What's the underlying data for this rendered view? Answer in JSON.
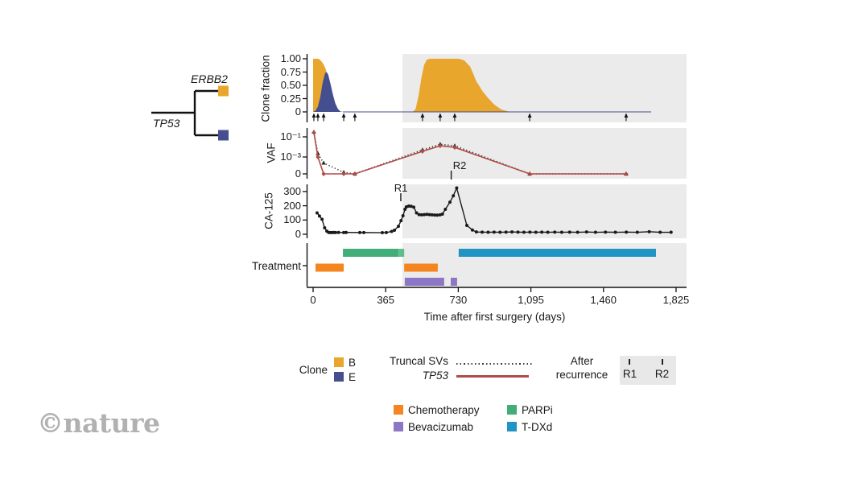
{
  "branding": {
    "logo": "©nature"
  },
  "tree": {
    "root_label": "TP53",
    "branch_top_label": "ERBB2",
    "branch_top_color": "#e8a62c",
    "branch_bottom_color": "#454f8f"
  },
  "figure": {
    "panel_bg": "#ebebeb",
    "recurrence_start_day": 449,
    "x_axis": {
      "title": "Time after first surgery (days)",
      "tick_days": [
        0,
        365,
        730,
        1095,
        1460,
        1825
      ],
      "tick_labels": [
        "0",
        "365",
        "730",
        "1,095",
        "1,460",
        "1,825"
      ],
      "domain_days": [
        0,
        1825
      ]
    }
  },
  "chart_data": [
    {
      "id": "clone_fraction",
      "type": "area",
      "ylabel": "Clone fraction",
      "ytick_labels": [
        "1.00",
        "0.75",
        "0.50",
        "0.25",
        "0"
      ],
      "ytick_values": [
        1,
        0.75,
        0.5,
        0.25,
        0
      ],
      "ylim": [
        0,
        1
      ],
      "series": [
        {
          "name": "Clone B",
          "color": "#e8a62c",
          "x": [
            0,
            28,
            40,
            52,
            64,
            76,
            88,
            100,
            112,
            124,
            136,
            148,
            500,
            515,
            530,
            545,
            558,
            571,
            585,
            733,
            760,
            790,
            805,
            820,
            834,
            850,
            865,
            880,
            895,
            910,
            925,
            940,
            955,
            970,
            985,
            1000,
            1025,
            1878
          ],
          "y": [
            1,
            1,
            0.96,
            0.9,
            0.8,
            0.62,
            0.44,
            0.27,
            0.14,
            0.05,
            0.01,
            0,
            0,
            0.05,
            0.3,
            0.65,
            0.88,
            0.98,
            1,
            1,
            0.97,
            0.85,
            0.72,
            0.58,
            0.5,
            0.4,
            0.33,
            0.26,
            0.2,
            0.14,
            0.1,
            0.06,
            0.035,
            0.02,
            0.008,
            0.002,
            0,
            0
          ]
        },
        {
          "name": "Clone E",
          "color": "#454f8f",
          "x": [
            0,
            12,
            24,
            36,
            48,
            60,
            68,
            76,
            88,
            100,
            112,
            124,
            136,
            150,
            1700
          ],
          "y": [
            0,
            0.02,
            0.1,
            0.28,
            0.55,
            0.73,
            0.75,
            0.7,
            0.52,
            0.32,
            0.16,
            0.06,
            0.01,
            0,
            0
          ]
        }
      ],
      "sample_days": [
        4,
        24,
        53,
        154,
        210,
        550,
        639,
        712,
        1089,
        1574
      ]
    },
    {
      "id": "vaf",
      "type": "line",
      "ylabel": "VAF",
      "ytick_labels": [
        "10⁻¹",
        "10⁻³",
        "0"
      ],
      "series": [
        {
          "name": "Truncal SVs",
          "style": "dotted",
          "color": "#2b2b2b",
          "marker": "triangle",
          "points": [
            [
              4,
              0.3
            ],
            [
              24,
              0.0022
            ],
            [
              53,
              0.00025
            ],
            [
              154,
              3e-05
            ],
            [
              210,
              0
            ],
            [
              550,
              0.005
            ],
            [
              639,
              0.018
            ],
            [
              712,
              0.013
            ],
            [
              1089,
              0
            ],
            [
              1574,
              0
            ]
          ]
        },
        {
          "name": "TP53",
          "style": "solid",
          "color": "#b14b48",
          "marker": "diamond",
          "points": [
            [
              4,
              0.27
            ],
            [
              24,
              0.001
            ],
            [
              53,
              0
            ],
            [
              154,
              0
            ],
            [
              210,
              0
            ],
            [
              550,
              0.0036
            ],
            [
              639,
              0.013
            ],
            [
              712,
              0.009
            ],
            [
              1089,
              0
            ],
            [
              1574,
              0
            ]
          ]
        }
      ]
    },
    {
      "id": "ca125",
      "type": "line",
      "ylabel": "CA-125",
      "ytick_labels": [
        "300",
        "200",
        "100",
        "0"
      ],
      "ytick_values": [
        300,
        200,
        100,
        0
      ],
      "annotations": [
        {
          "label": "R1",
          "day": 441
        },
        {
          "label": "R2",
          "day": 735
        }
      ],
      "series": [
        {
          "name": "CA-125",
          "color": "#1a1a1a",
          "marker": "circle",
          "points": [
            [
              20,
              150
            ],
            [
              32,
              128
            ],
            [
              45,
              105
            ],
            [
              58,
              45
            ],
            [
              69,
              22
            ],
            [
              78,
              13
            ],
            [
              86,
              12
            ],
            [
              95,
              12
            ],
            [
              104,
              13
            ],
            [
              113,
              12
            ],
            [
              128,
              13
            ],
            [
              154,
              12
            ],
            [
              166,
              13
            ],
            [
              235,
              12
            ],
            [
              255,
              12
            ],
            [
              348,
              11
            ],
            [
              368,
              12
            ],
            [
              395,
              20
            ],
            [
              409,
              28
            ],
            [
              429,
              56
            ],
            [
              442,
              95
            ],
            [
              452,
              130
            ],
            [
              462,
              175
            ],
            [
              469,
              192
            ],
            [
              481,
              198
            ],
            [
              493,
              196
            ],
            [
              506,
              190
            ],
            [
              520,
              150
            ],
            [
              533,
              138
            ],
            [
              546,
              136
            ],
            [
              559,
              138
            ],
            [
              572,
              140
            ],
            [
              585,
              138
            ],
            [
              598,
              136
            ],
            [
              611,
              135
            ],
            [
              624,
              134
            ],
            [
              638,
              136
            ],
            [
              650,
              141
            ],
            [
              665,
              175
            ],
            [
              688,
              225
            ],
            [
              705,
              270
            ],
            [
              722,
              325
            ],
            [
              773,
              62
            ],
            [
              801,
              30
            ],
            [
              821,
              16
            ],
            [
              850,
              15
            ],
            [
              880,
              14
            ],
            [
              910,
              15
            ],
            [
              940,
              14
            ],
            [
              970,
              15
            ],
            [
              1000,
              16
            ],
            [
              1030,
              15
            ],
            [
              1060,
              14
            ],
            [
              1090,
              15
            ],
            [
              1120,
              14
            ],
            [
              1150,
              15
            ],
            [
              1180,
              14
            ],
            [
              1215,
              15
            ],
            [
              1250,
              14
            ],
            [
              1290,
              15
            ],
            [
              1330,
              14
            ],
            [
              1375,
              16
            ],
            [
              1420,
              14
            ],
            [
              1470,
              15
            ],
            [
              1520,
              14
            ],
            [
              1575,
              15
            ],
            [
              1630,
              14
            ],
            [
              1690,
              18
            ],
            [
              1745,
              14
            ],
            [
              1800,
              14
            ]
          ]
        }
      ]
    },
    {
      "id": "treatment",
      "type": "bars",
      "ylabel": "Treatment",
      "bars": [
        {
          "name": "Chemotherapy",
          "color": "#f5861f",
          "row": 1,
          "spans": [
            [
              12,
              154
            ],
            [
              458,
              627
            ]
          ]
        },
        {
          "name": "PARPi",
          "color": "#41ae79",
          "row": 0,
          "spans": [
            [
              150,
              430
            ]
          ]
        },
        {
          "name": "PARPi",
          "color": "#5fbf8c",
          "row": 0,
          "spans": [
            [
              430,
              458
            ]
          ]
        },
        {
          "name": "Bevacizumab",
          "color": "#8e76c6",
          "row": 2,
          "spans": [
            [
              461,
              659
            ],
            [
              692,
              724
            ]
          ]
        },
        {
          "name": "T-DXd",
          "color": "#2095c3",
          "row": 0,
          "spans": [
            [
              732,
              1724
            ]
          ]
        }
      ]
    }
  ],
  "legend": {
    "clone": {
      "label": "Clone",
      "items": [
        {
          "label": "B",
          "color": "#e8a62c"
        },
        {
          "label": "E",
          "color": "#454f8f"
        }
      ]
    },
    "lines": {
      "truncal_label": "Truncal SVs",
      "tp53_label": "TP53",
      "truncal_color": "#3a3a3a",
      "tp53_color": "#b14b48"
    },
    "after_recurrence": {
      "label_line1": "After",
      "label_line2": "recurrence",
      "r1": "R1",
      "r2": "R2"
    },
    "treatments": [
      {
        "label": "Chemotherapy",
        "color": "#f5861f"
      },
      {
        "label": "PARPi",
        "color": "#41ae79"
      },
      {
        "label": "Bevacizumab",
        "color": "#8e76c6"
      },
      {
        "label": "T-DXd",
        "color": "#2095c3"
      }
    ]
  }
}
